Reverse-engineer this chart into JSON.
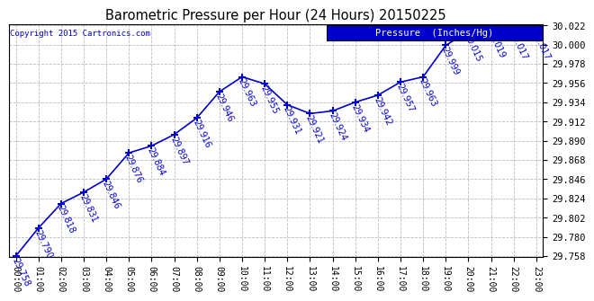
{
  "title": "Barometric Pressure per Hour (24 Hours) 20150225",
  "copyright": "Copyright 2015 Cartronics.com",
  "legend_label": "Pressure  (Inches/Hg)",
  "hours": [
    0,
    1,
    2,
    3,
    4,
    5,
    6,
    7,
    8,
    9,
    10,
    11,
    12,
    13,
    14,
    15,
    16,
    17,
    18,
    19,
    20,
    21,
    22,
    23
  ],
  "values": [
    29.758,
    29.79,
    29.818,
    29.831,
    29.846,
    29.876,
    29.884,
    29.897,
    29.916,
    29.946,
    29.963,
    29.955,
    29.931,
    29.921,
    29.924,
    29.934,
    29.942,
    29.957,
    29.963,
    29.999,
    30.015,
    30.019,
    30.017,
    30.017
  ],
  "tick_labels": [
    "00:00",
    "01:00",
    "02:00",
    "03:00",
    "04:00",
    "05:00",
    "06:00",
    "07:00",
    "08:00",
    "09:00",
    "10:00",
    "11:00",
    "12:00",
    "13:00",
    "14:00",
    "15:00",
    "16:00",
    "17:00",
    "18:00",
    "19:00",
    "20:00",
    "21:00",
    "22:00",
    "23:00"
  ],
  "ylim_min": 29.758,
  "ylim_max": 30.022,
  "ytick_step": 0.022,
  "line_color": "#0000cc",
  "marker_color": "#0000cc",
  "bg_color": "#ffffff",
  "plot_bg_color": "#ffffff",
  "grid_color": "#bbbbbb",
  "title_color": "#000000",
  "legend_bg": "#0000cc",
  "legend_text_color": "#ffffff",
  "copyright_color": "#0000cc",
  "label_rotation": -65,
  "label_fontsize": 7.0,
  "axis_label_color": "#000000"
}
